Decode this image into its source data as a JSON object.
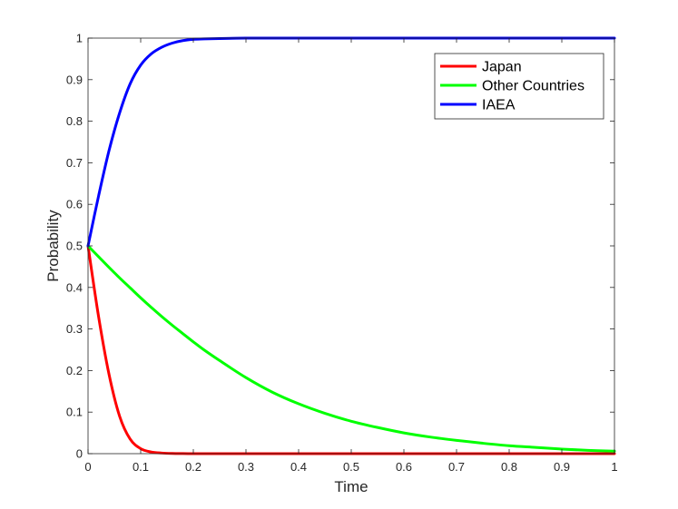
{
  "chart_data": {
    "type": "line",
    "title": "",
    "xlabel": "Time",
    "ylabel": "Probability",
    "xlim": [
      0,
      1
    ],
    "ylim": [
      0,
      1
    ],
    "xticks": [
      "0",
      "0.1",
      "0.2",
      "0.3",
      "0.4",
      "0.5",
      "0.6",
      "0.7",
      "0.8",
      "0.9",
      "1"
    ],
    "yticks": [
      "0",
      "0.1",
      "0.2",
      "0.3",
      "0.4",
      "0.5",
      "0.6",
      "0.7",
      "0.8",
      "0.9",
      "1"
    ],
    "grid": false,
    "legend_position": "top-right",
    "x": [
      0,
      0.02,
      0.04,
      0.06,
      0.08,
      0.1,
      0.12,
      0.14,
      0.16,
      0.18,
      0.2,
      0.22,
      0.25,
      0.3,
      0.35,
      0.4,
      0.45,
      0.5,
      0.55,
      0.6,
      0.65,
      0.7,
      0.75,
      0.8,
      0.85,
      0.9,
      0.95,
      1.0
    ],
    "series": [
      {
        "name": "Japan",
        "color": "#ff0000",
        "values": [
          0.5,
          0.33,
          0.19,
          0.09,
          0.035,
          0.012,
          0.004,
          0.0015,
          0.0005,
          0.0002,
          0,
          0,
          0,
          0,
          0,
          0,
          0,
          0,
          0,
          0,
          0,
          0,
          0,
          0,
          0,
          0,
          0,
          0
        ]
      },
      {
        "name": "Other Countries",
        "color": "#00ff00",
        "values": [
          0.5,
          0.474,
          0.448,
          0.423,
          0.399,
          0.375,
          0.352,
          0.33,
          0.309,
          0.289,
          0.269,
          0.25,
          0.224,
          0.183,
          0.148,
          0.12,
          0.097,
          0.078,
          0.063,
          0.05,
          0.04,
          0.032,
          0.025,
          0.019,
          0.015,
          0.011,
          0.008,
          0.006
        ]
      },
      {
        "name": "IAEA",
        "color": "#0000ff",
        "values": [
          0.5,
          0.62,
          0.73,
          0.82,
          0.89,
          0.935,
          0.962,
          0.978,
          0.988,
          0.994,
          0.997,
          0.998,
          0.999,
          1.0,
          1.0,
          1.0,
          1.0,
          1.0,
          1.0,
          1.0,
          1.0,
          1.0,
          1.0,
          1.0,
          1.0,
          1.0,
          1.0,
          1.0
        ]
      }
    ]
  }
}
